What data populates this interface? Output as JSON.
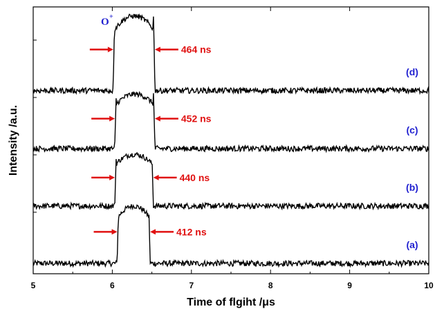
{
  "chart_data": {
    "type": "line",
    "xlabel": "Time of flgiht /μs",
    "ylabel": "Intensity /a.u.",
    "xlim": [
      5,
      10
    ],
    "xticks": [
      "5",
      "6",
      "7",
      "8",
      "9",
      "10"
    ],
    "peak_label": {
      "text": "O",
      "superscript": "+"
    },
    "colors": {
      "trace": "#000000",
      "label": "#1f1fd0",
      "annotation": "#e01010"
    },
    "series": [
      {
        "name": "(a)",
        "baseline": 0.0,
        "peak": 1.0,
        "rise": 6.08,
        "fall": 6.46,
        "fwhm_label": "412 ns"
      },
      {
        "name": "(b)",
        "baseline": 1.0,
        "peak": 1.9,
        "rise": 6.05,
        "fall": 6.5,
        "fwhm_label": "440 ns"
      },
      {
        "name": "(c)",
        "baseline": 2.0,
        "peak": 2.95,
        "rise": 6.05,
        "fall": 6.52,
        "fwhm_label": "452 ns"
      },
      {
        "name": "(d)",
        "baseline": 3.0,
        "peak": 4.3,
        "rise": 6.03,
        "fall": 6.52,
        "fwhm_label": "464 ns"
      }
    ]
  }
}
